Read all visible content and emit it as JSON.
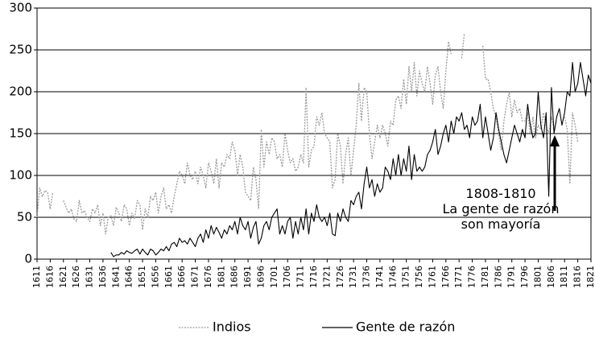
{
  "chart_data": {
    "type": "line",
    "x": [
      1611,
      1612,
      1613,
      1614,
      1615,
      1616,
      1617,
      1618,
      1619,
      1620,
      1621,
      1622,
      1623,
      1624,
      1625,
      1626,
      1627,
      1628,
      1629,
      1630,
      1631,
      1632,
      1633,
      1634,
      1635,
      1636,
      1637,
      1638,
      1639,
      1640,
      1641,
      1642,
      1643,
      1644,
      1645,
      1646,
      1647,
      1648,
      1649,
      1650,
      1651,
      1652,
      1653,
      1654,
      1655,
      1656,
      1657,
      1658,
      1659,
      1660,
      1661,
      1662,
      1663,
      1664,
      1665,
      1666,
      1667,
      1668,
      1669,
      1670,
      1671,
      1672,
      1673,
      1674,
      1675,
      1676,
      1677,
      1678,
      1679,
      1680,
      1681,
      1682,
      1683,
      1684,
      1685,
      1686,
      1687,
      1688,
      1689,
      1690,
      1691,
      1692,
      1693,
      1694,
      1695,
      1696,
      1697,
      1698,
      1699,
      1700,
      1701,
      1702,
      1703,
      1704,
      1705,
      1706,
      1707,
      1708,
      1709,
      1710,
      1711,
      1712,
      1713,
      1714,
      1715,
      1716,
      1717,
      1718,
      1719,
      1720,
      1721,
      1722,
      1723,
      1724,
      1725,
      1726,
      1727,
      1728,
      1729,
      1730,
      1731,
      1732,
      1733,
      1734,
      1735,
      1736,
      1737,
      1738,
      1739,
      1740,
      1741,
      1742,
      1743,
      1744,
      1745,
      1746,
      1747,
      1748,
      1749,
      1750,
      1751,
      1752,
      1753,
      1754,
      1755,
      1756,
      1757,
      1758,
      1759,
      1760,
      1761,
      1762,
      1763,
      1764,
      1765,
      1766,
      1767,
      1768,
      1769,
      1770,
      1771,
      1772,
      1773,
      1774,
      1775,
      1776,
      1777,
      1778,
      1779,
      1780,
      1781,
      1782,
      1783,
      1784,
      1785,
      1786,
      1787,
      1788,
      1789,
      1790,
      1791,
      1792,
      1793,
      1794,
      1795,
      1796,
      1797,
      1798,
      1799,
      1800,
      1801,
      1802,
      1803,
      1804,
      1805,
      1806,
      1807,
      1808,
      1809,
      1810,
      1811,
      1812,
      1813,
      1814,
      1815,
      1816,
      1817,
      1818,
      1819,
      1820,
      1821
    ],
    "series": [
      {
        "name": "Indios",
        "color": "#9a9a9a",
        "dashed": true,
        "values": [
          50,
          85,
          75,
          82,
          80,
          60,
          80,
          null,
          null,
          null,
          70,
          62,
          55,
          60,
          48,
          45,
          70,
          55,
          58,
          50,
          45,
          60,
          55,
          65,
          40,
          55,
          30,
          50,
          52,
          40,
          62,
          55,
          45,
          65,
          60,
          40,
          55,
          48,
          70,
          65,
          35,
          60,
          50,
          75,
          70,
          80,
          55,
          75,
          85,
          60,
          65,
          55,
          75,
          90,
          105,
          100,
          90,
          115,
          100,
          95,
          105,
          90,
          110,
          100,
          85,
          115,
          105,
          90,
          120,
          85,
          115,
          110,
          125,
          120,
          140,
          130,
          100,
          125,
          110,
          80,
          75,
          70,
          110,
          95,
          60,
          155,
          110,
          140,
          125,
          145,
          140,
          120,
          125,
          110,
          150,
          130,
          115,
          120,
          105,
          110,
          125,
          115,
          205,
          110,
          130,
          135,
          170,
          160,
          175,
          150,
          145,
          140,
          85,
          95,
          150,
          135,
          90,
          125,
          145,
          100,
          130,
          160,
          210,
          165,
          205,
          200,
          150,
          120,
          140,
          160,
          145,
          160,
          150,
          135,
          165,
          160,
          190,
          195,
          180,
          215,
          185,
          230,
          200,
          235,
          195,
          225,
          210,
          200,
          230,
          210,
          185,
          220,
          230,
          200,
          180,
          225,
          260,
          245,
          null,
          null,
          null,
          240,
          270,
          null,
          null,
          null,
          null,
          null,
          null,
          255,
          215,
          215,
          200,
          180,
          170,
          150,
          130,
          165,
          185,
          200,
          170,
          190,
          175,
          180,
          165,
          165,
          175,
          150,
          170,
          145,
          160,
          155,
          175,
          160,
          150,
          170,
          155,
          165,
          null,
          null,
          170,
          155,
          90,
          175,
          160,
          140,
          null,
          null,
          null,
          null,
          null
        ]
      },
      {
        "name": "Gente de razón",
        "color": "#000000",
        "dashed": false,
        "values": [
          null,
          null,
          null,
          null,
          null,
          null,
          null,
          null,
          null,
          null,
          null,
          null,
          null,
          null,
          null,
          null,
          null,
          null,
          null,
          null,
          null,
          null,
          null,
          null,
          null,
          null,
          null,
          null,
          8,
          3,
          5,
          5,
          8,
          6,
          10,
          8,
          7,
          10,
          12,
          6,
          12,
          8,
          5,
          12,
          10,
          5,
          8,
          12,
          10,
          15,
          10,
          18,
          20,
          15,
          25,
          20,
          22,
          18,
          25,
          20,
          15,
          25,
          30,
          20,
          35,
          25,
          40,
          30,
          38,
          32,
          25,
          35,
          30,
          40,
          35,
          45,
          30,
          50,
          40,
          35,
          45,
          25,
          38,
          45,
          18,
          25,
          40,
          45,
          35,
          50,
          55,
          60,
          30,
          40,
          30,
          45,
          50,
          25,
          45,
          30,
          50,
          35,
          60,
          30,
          55,
          45,
          65,
          50,
          45,
          50,
          40,
          55,
          30,
          28,
          55,
          45,
          60,
          50,
          45,
          70,
          65,
          75,
          80,
          60,
          90,
          110,
          85,
          95,
          75,
          90,
          80,
          85,
          110,
          105,
          95,
          120,
          100,
          125,
          100,
          120,
          105,
          135,
          95,
          125,
          105,
          110,
          105,
          110,
          125,
          130,
          140,
          155,
          125,
          135,
          150,
          160,
          140,
          165,
          150,
          170,
          165,
          175,
          155,
          160,
          145,
          170,
          160,
          165,
          185,
          145,
          170,
          150,
          130,
          145,
          175,
          155,
          140,
          125,
          115,
          130,
          145,
          160,
          150,
          140,
          155,
          145,
          185,
          160,
          145,
          150,
          200,
          160,
          145,
          175,
          75,
          205,
          150,
          170,
          180,
          160,
          175,
          200,
          195,
          235,
          200,
          210,
          235,
          215,
          195,
          220,
          210
        ]
      }
    ],
    "xlim": [
      1611,
      1821
    ],
    "xticks": [
      1611,
      1616,
      1621,
      1626,
      1631,
      1636,
      1641,
      1646,
      1651,
      1656,
      1661,
      1666,
      1671,
      1676,
      1681,
      1686,
      1691,
      1696,
      1701,
      1706,
      1711,
      1716,
      1721,
      1726,
      1731,
      1736,
      1741,
      1746,
      1751,
      1756,
      1761,
      1766,
      1771,
      1776,
      1781,
      1786,
      1791,
      1796,
      1801,
      1806,
      1811,
      1816,
      1821
    ],
    "ylim": [
      0,
      300
    ],
    "yticks": [
      0,
      50,
      100,
      150,
      200,
      250,
      300
    ],
    "grid": true,
    "annotation": [
      "1808-1810",
      "La gente de razón",
      "son mayoría"
    ]
  }
}
